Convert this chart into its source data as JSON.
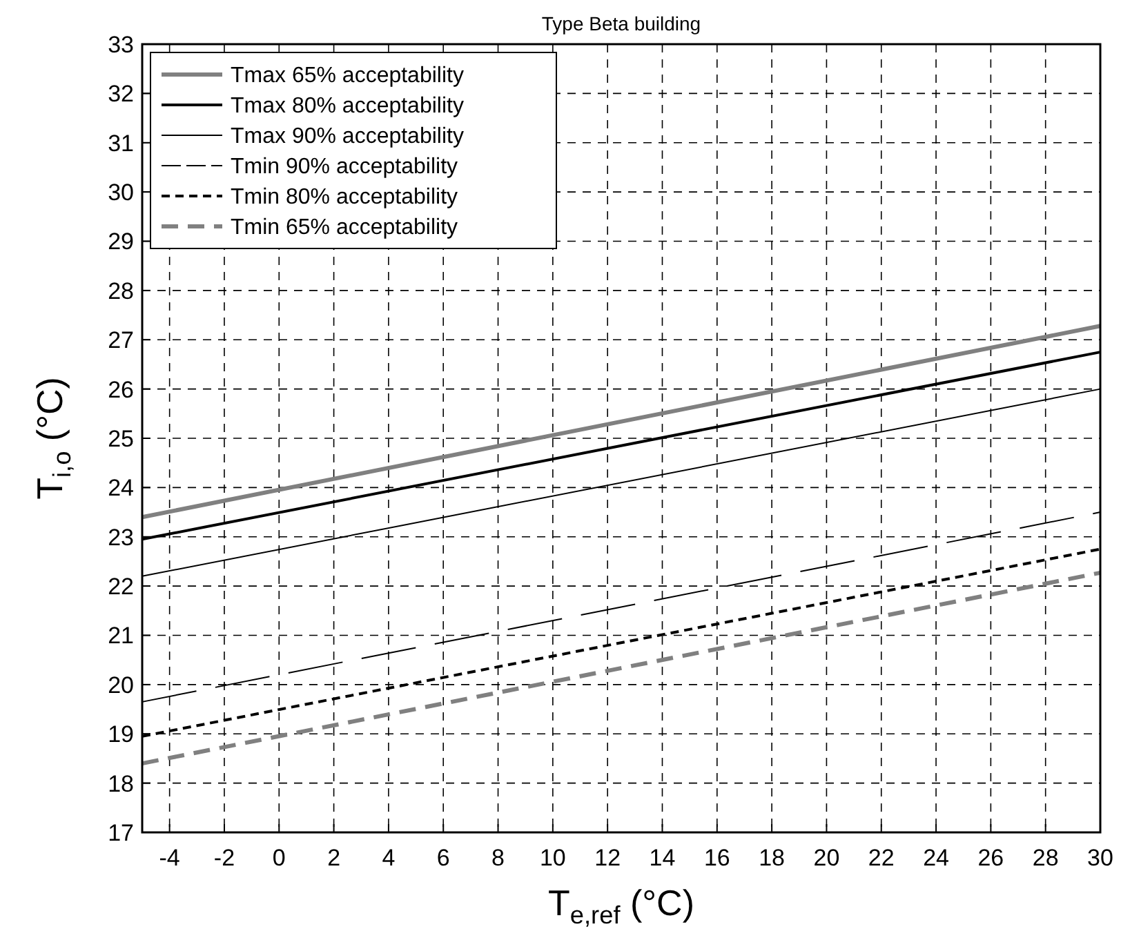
{
  "chart_data": {
    "type": "line",
    "title": "Type Beta building",
    "xlabel": "T$_{e,ref}$ (°C)",
    "ylabel": "T$_{i,o}$ (°C)",
    "xlim": [
      -5,
      30
    ],
    "xticks": [
      -4,
      -2,
      0,
      2,
      4,
      6,
      8,
      10,
      12,
      14,
      16,
      18,
      20,
      22,
      24,
      26,
      28,
      30
    ],
    "ylim": [
      17,
      33
    ],
    "yticks": [
      17,
      18,
      19,
      20,
      21,
      22,
      23,
      24,
      25,
      26,
      27,
      28,
      29,
      30,
      31,
      32,
      33
    ],
    "grid": true,
    "legend": "top left",
    "marker": "none",
    "x": [
      -5,
      30
    ],
    "series": [
      {
        "name": "Tmax 65% acceptability",
        "color": "#808080",
        "line_style": "solid",
        "values": [
          23.4,
          27.28
        ]
      },
      {
        "name": "Tmax 80% acceptability",
        "color": "#000000",
        "line_style": "solid",
        "values": [
          22.95,
          26.75
        ]
      },
      {
        "name": "Tmax 90% acceptability",
        "color": "#000000",
        "line_style": "solid",
        "values": [
          22.2,
          26.0
        ]
      },
      {
        "name": "Tmin 90% acceptability",
        "color": "#000000",
        "line_style": "dashed",
        "values": [
          19.65,
          23.5
        ]
      },
      {
        "name": "Tmin 80% acceptability",
        "color": "#000000",
        "line_style": "dashed",
        "values": [
          18.95,
          22.75
        ]
      },
      {
        "name": "Tmin 65% acceptability",
        "color": "#808080",
        "line_style": "dashed",
        "values": [
          18.4,
          22.27
        ]
      }
    ]
  }
}
